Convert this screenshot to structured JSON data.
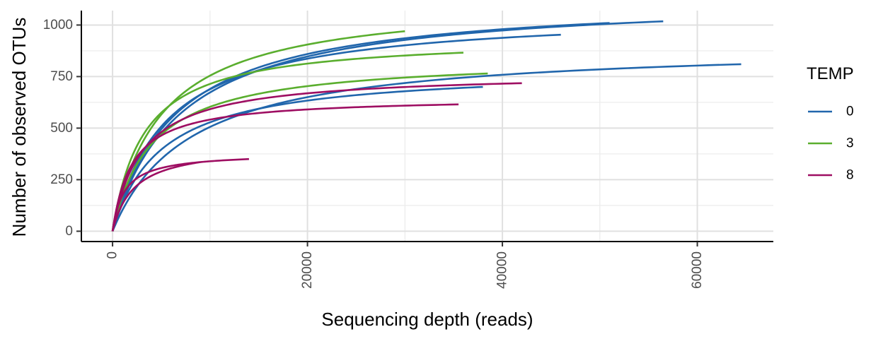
{
  "chart_data": {
    "type": "line",
    "title": "",
    "xlabel": "Sequencing depth (reads)",
    "ylabel": "Number of observed OTUs",
    "xlim": [
      -3200,
      67800
    ],
    "ylim": [
      -50,
      1070
    ],
    "x_ticks": [
      0,
      20000,
      40000,
      60000
    ],
    "x_tick_labels": [
      "0",
      "20000",
      "40000",
      "60000"
    ],
    "y_ticks": [
      0,
      250,
      500,
      750,
      1000
    ],
    "y_tick_labels": [
      "0",
      "250",
      "500",
      "750",
      "1000"
    ],
    "grid": true,
    "legend": {
      "title": "TEMP",
      "position": "right",
      "entries": [
        {
          "label": "0",
          "color": "#2166ac"
        },
        {
          "label": "3",
          "color": "#5aae2e"
        },
        {
          "label": "8",
          "color": "#9e0e62"
        }
      ]
    },
    "series": [
      {
        "group": "0",
        "color": "#2166ac",
        "max_depth": 64500,
        "max_otus": 810,
        "k": 8000
      },
      {
        "group": "0",
        "color": "#2166ac",
        "max_depth": 56500,
        "max_otus": 1018,
        "k": 7000
      },
      {
        "group": "0",
        "color": "#2166ac",
        "max_depth": 51000,
        "max_otus": 1010,
        "k": 6500
      },
      {
        "group": "0",
        "color": "#2166ac",
        "max_depth": 46000,
        "max_otus": 953,
        "k": 5500
      },
      {
        "group": "0",
        "color": "#2166ac",
        "max_depth": 38000,
        "max_otus": 700,
        "k": 5000
      },
      {
        "group": "3",
        "color": "#5aae2e",
        "max_depth": 38500,
        "max_otus": 765,
        "k": 4000
      },
      {
        "group": "3",
        "color": "#5aae2e",
        "max_depth": 36000,
        "max_otus": 866,
        "k": 3200
      },
      {
        "group": "3",
        "color": "#5aae2e",
        "max_depth": 30000,
        "max_otus": 970,
        "k": 5000
      },
      {
        "group": "8",
        "color": "#9e0e62",
        "max_depth": 42000,
        "max_otus": 718,
        "k": 3000
      },
      {
        "group": "8",
        "color": "#9e0e62",
        "max_depth": 35500,
        "max_otus": 615,
        "k": 2000
      },
      {
        "group": "8",
        "color": "#9e0e62",
        "max_depth": 14000,
        "max_otus": 350,
        "k": 1200
      },
      {
        "group": "8",
        "color": "#9e0e62",
        "max_depth": 9000,
        "max_otus": 335,
        "k": 2200
      }
    ]
  }
}
